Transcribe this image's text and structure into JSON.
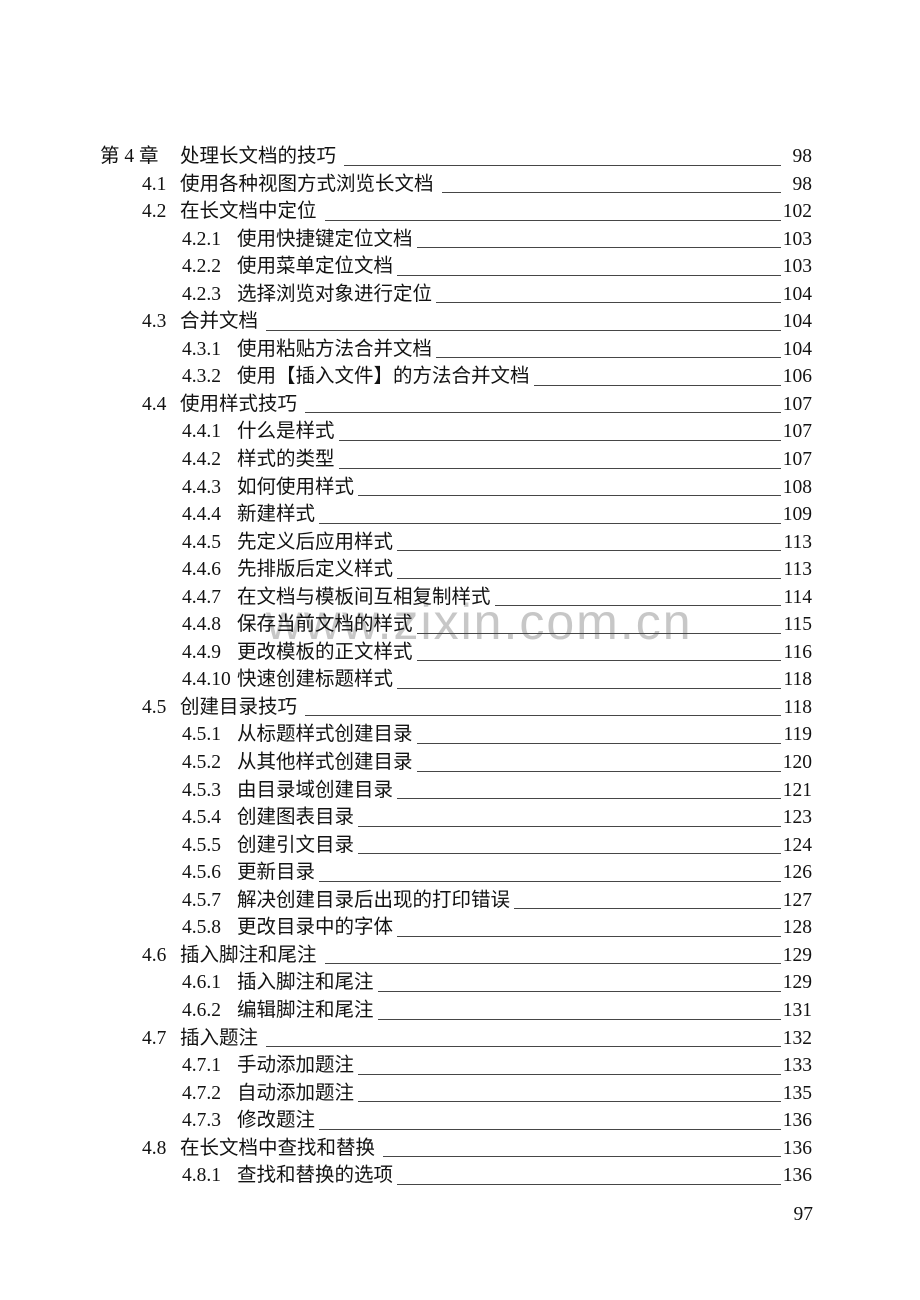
{
  "page": {
    "watermark": "www.zixin.com.cn",
    "footer_page_number": "97"
  },
  "toc": {
    "entries": [
      {
        "level": 1,
        "num": "第 4 章",
        "title": "处理长文档的技巧",
        "page": "98"
      },
      {
        "level": 2,
        "num": "4.1",
        "title": "使用各种视图方式浏览长文档",
        "page": "98"
      },
      {
        "level": 2,
        "num": "4.2",
        "title": "在长文档中定位",
        "page": "102"
      },
      {
        "level": 3,
        "num": "4.2.1",
        "title": "使用快捷键定位文档",
        "page": "103"
      },
      {
        "level": 3,
        "num": "4.2.2",
        "title": "使用菜单定位文档",
        "page": "103"
      },
      {
        "level": 3,
        "num": "4.2.3",
        "title": "选择浏览对象进行定位",
        "page": "104"
      },
      {
        "level": 2,
        "num": "4.3",
        "title": "合并文档",
        "page": "104"
      },
      {
        "level": 3,
        "num": "4.3.1",
        "title": "使用粘贴方法合并文档",
        "page": "104"
      },
      {
        "level": 3,
        "num": "4.3.2",
        "title": "使用【插入文件】的方法合并文档",
        "page": "106"
      },
      {
        "level": 2,
        "num": "4.4",
        "title": "使用样式技巧",
        "page": "107"
      },
      {
        "level": 3,
        "num": "4.4.1",
        "title": "什么是样式",
        "page": "107"
      },
      {
        "level": 3,
        "num": "4.4.2",
        "title": "样式的类型",
        "page": "107"
      },
      {
        "level": 3,
        "num": "4.4.3",
        "title": "如何使用样式",
        "page": "108"
      },
      {
        "level": 3,
        "num": "4.4.4",
        "title": "新建样式",
        "page": "109"
      },
      {
        "level": 3,
        "num": "4.4.5",
        "title": "先定义后应用样式",
        "page": "113"
      },
      {
        "level": 3,
        "num": "4.4.6",
        "title": "先排版后定义样式",
        "page": "113"
      },
      {
        "level": 3,
        "num": "4.4.7",
        "title": "在文档与模板间互相复制样式",
        "page": "114"
      },
      {
        "level": 3,
        "num": "4.4.8",
        "title": "保存当前文档的样式",
        "page": "115"
      },
      {
        "level": 3,
        "num": "4.4.9",
        "title": "更改模板的正文样式",
        "page": "116"
      },
      {
        "level": 3,
        "num": "4.4.10",
        "title": "快速创建标题样式",
        "page": "118"
      },
      {
        "level": 2,
        "num": "4.5",
        "title": "创建目录技巧",
        "page": "118"
      },
      {
        "level": 3,
        "num": "4.5.1",
        "title": "从标题样式创建目录",
        "page": "119"
      },
      {
        "level": 3,
        "num": "4.5.2",
        "title": "从其他样式创建目录",
        "page": "120"
      },
      {
        "level": 3,
        "num": "4.5.3",
        "title": "由目录域创建目录",
        "page": "121"
      },
      {
        "level": 3,
        "num": "4.5.4",
        "title": "创建图表目录",
        "page": "123"
      },
      {
        "level": 3,
        "num": "4.5.5",
        "title": "创建引文目录",
        "page": "124"
      },
      {
        "level": 3,
        "num": "4.5.6",
        "title": "更新目录",
        "page": "126"
      },
      {
        "level": 3,
        "num": "4.5.7",
        "title": "解决创建目录后出现的打印错误",
        "page": "127"
      },
      {
        "level": 3,
        "num": "4.5.8",
        "title": "更改目录中的字体",
        "page": "128"
      },
      {
        "level": 2,
        "num": "4.6",
        "title": "插入脚注和尾注",
        "page": "129"
      },
      {
        "level": 3,
        "num": "4.6.1",
        "title": "插入脚注和尾注",
        "page": "129"
      },
      {
        "level": 3,
        "num": "4.6.2",
        "title": "编辑脚注和尾注",
        "page": "131"
      },
      {
        "level": 2,
        "num": "4.7",
        "title": "插入题注",
        "page": "132"
      },
      {
        "level": 3,
        "num": "4.7.1",
        "title": "手动添加题注",
        "page": "133"
      },
      {
        "level": 3,
        "num": "4.7.2",
        "title": "自动添加题注",
        "page": "135"
      },
      {
        "level": 3,
        "num": "4.7.3",
        "title": "修改题注",
        "page": "136"
      },
      {
        "level": 2,
        "num": "4.8",
        "title": "在长文档中查找和替换",
        "page": "136"
      },
      {
        "level": 3,
        "num": "4.8.1",
        "title": "查找和替换的选项",
        "page": "136"
      }
    ]
  }
}
